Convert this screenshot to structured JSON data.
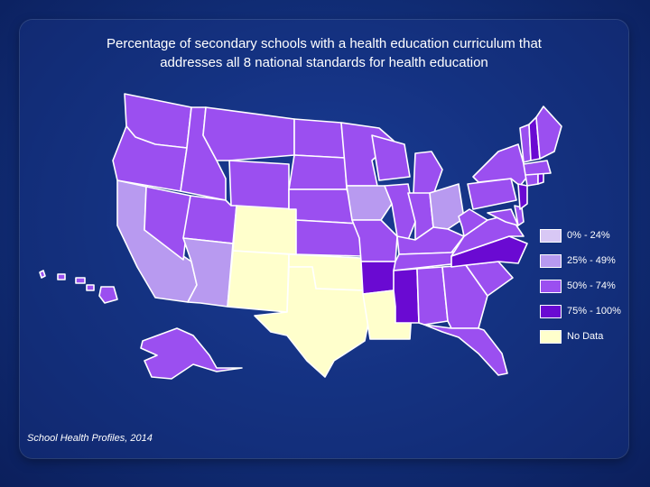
{
  "title_lines": [
    "Percentage of secondary schools with a health education curriculum that",
    "addresses all 8 national standards for health education"
  ],
  "source": "School Health Profiles, 2014",
  "legend": [
    {
      "label": "0% - 24%",
      "color": "#d8c8f5"
    },
    {
      "label": "25% - 49%",
      "color": "#b89af0"
    },
    {
      "label": "50% - 74%",
      "color": "#9b4ff0"
    },
    {
      "label": "75% - 100%",
      "color": "#6a0ad2"
    },
    {
      "label": "No Data",
      "color": "#ffffcc"
    }
  ],
  "states": {
    "WA": "50% - 74%",
    "OR": "50% - 74%",
    "ID": "50% - 74%",
    "MT": "50% - 74%",
    "WY": "50% - 74%",
    "ND": "50% - 74%",
    "SD": "50% - 74%",
    "NE": "50% - 74%",
    "KS": "50% - 74%",
    "MN": "50% - 74%",
    "WI": "50% - 74%",
    "MI": "50% - 74%",
    "IL": "50% - 74%",
    "IN": "50% - 74%",
    "MO": "50% - 74%",
    "KY": "50% - 74%",
    "TN": "50% - 74%",
    "AL": "50% - 74%",
    "GA": "50% - 74%",
    "SC": "50% - 74%",
    "FL": "50% - 74%",
    "VA": "50% - 74%",
    "WV": "50% - 74%",
    "PA": "50% - 74%",
    "NY": "50% - 74%",
    "ME": "50% - 74%",
    "VT": "50% - 74%",
    "MA": "50% - 74%",
    "CT": "50% - 74%",
    "DE": "50% - 74%",
    "MD": "50% - 74%",
    "NV": "50% - 74%",
    "UT": "50% - 74%",
    "AK": "50% - 74%",
    "HI": "50% - 74%",
    "CA": "25% - 49%",
    "AZ": "25% - 49%",
    "IA": "25% - 49%",
    "OH": "25% - 49%",
    "AR": "75% - 100%",
    "MS": "75% - 100%",
    "NC": "75% - 100%",
    "NH": "75% - 100%",
    "NJ": "75% - 100%",
    "RI": "75% - 100%",
    "CO": "No Data",
    "NM": "No Data",
    "TX": "No Data",
    "OK": "No Data",
    "LA": "No Data"
  }
}
